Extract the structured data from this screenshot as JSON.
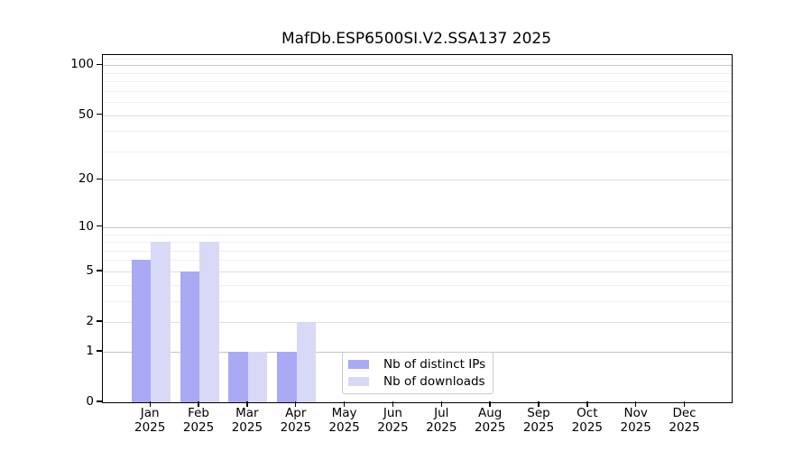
{
  "chart_data": {
    "type": "bar",
    "title": "MafDb.ESP6500SI.V2.SSA137 2025",
    "categories": [
      "Jan 2025",
      "Feb 2025",
      "Mar 2025",
      "Apr 2025",
      "May 2025",
      "Jun 2025",
      "Jul 2025",
      "Aug 2025",
      "Sep 2025",
      "Oct 2025",
      "Nov 2025",
      "Dec 2025"
    ],
    "series": [
      {
        "name": "Nb of distinct IPs",
        "color": "#a9a9f4",
        "values": [
          6,
          5,
          1,
          1,
          0,
          0,
          0,
          0,
          0,
          0,
          0,
          0
        ]
      },
      {
        "name": "Nb of downloads",
        "color": "#d8d8f7",
        "values": [
          8,
          8,
          1,
          2,
          0,
          0,
          0,
          0,
          0,
          0,
          0,
          0
        ]
      }
    ],
    "xlabel": "",
    "ylabel": "",
    "y_axis": {
      "scale": "log1p",
      "ticks": [
        0,
        1,
        2,
        5,
        10,
        20,
        50,
        100
      ],
      "mid_ticks": [
        2,
        5,
        20,
        50
      ],
      "minor_ticks": [
        3,
        4,
        6,
        7,
        8,
        9,
        30,
        40,
        60,
        70,
        80,
        90,
        110
      ],
      "max": 115
    },
    "grid": true,
    "legend_position": "bottom-center"
  }
}
